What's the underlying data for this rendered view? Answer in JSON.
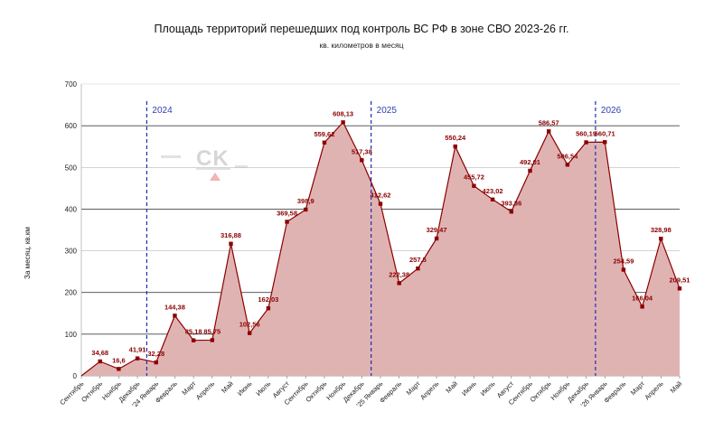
{
  "chart_data": {
    "type": "area",
    "title": "Площадь территорий перешедших под контроль ВС РФ в зоне СВО 2023-26 гг.",
    "subtitle": "кв. километров в месяц",
    "ylabel": "За месяц, кв.км",
    "xlabel": "",
    "ylim": [
      0,
      700
    ],
    "yticks": [
      0,
      100,
      200,
      300,
      400,
      500,
      600,
      700
    ],
    "grid": "horizontal",
    "colors": {
      "fill": "#e0b3b3",
      "line": "#8b0000",
      "marker": "#8b0000",
      "divider": "#1a2fb0"
    },
    "categories": [
      "Сентябрь",
      "Октябрь",
      "Ноябрь",
      "Декабрь",
      "'24 Январь",
      "Февраль",
      "Март",
      "Апрель",
      "Май",
      "Июнь",
      "Июль",
      "Август",
      "Сентябрь",
      "Октябрь",
      "Ноябрь",
      "Декабрь",
      "'25 Январь",
      "Февраль",
      "Март",
      "Апрель",
      "Май",
      "Июнь",
      "Июль",
      "Август",
      "Сентябрь",
      "Октябрь",
      "Ноябрь",
      "Декабрь",
      "'26 Январь",
      "Февраль",
      "Март",
      "Апрель",
      "Май"
    ],
    "values": [
      0,
      34.68,
      16.6,
      41.91,
      32.28,
      144.38,
      85.18,
      85.75,
      316.88,
      102.56,
      162.03,
      369.58,
      398.9,
      559.62,
      608.13,
      517.38,
      412.62,
      222.38,
      257.5,
      329.47,
      550.24,
      455.72,
      423.02,
      393.86,
      492.01,
      586.57,
      506.54,
      560.19,
      560.71,
      254.59,
      166.04,
      328.98,
      209.51
    ],
    "data_labels": [
      "",
      "34,68",
      "16,6",
      "41,91",
      "32,28",
      "144,38",
      "85,18",
      "85,75",
      "316,88",
      "102,56",
      "162,03",
      "369,58",
      "398,9",
      "559,62",
      "608,13",
      "517,38",
      "412,62",
      "222,38",
      "257,5",
      "329,47",
      "550,24",
      "455,72",
      "423,02",
      "393,86",
      "492,01",
      "586,57",
      "506,54",
      "560,19",
      "560,71",
      "254,59",
      "166,04",
      "328,98",
      "209,51"
    ],
    "year_markers": [
      {
        "label": "2024",
        "between": [
          3,
          4
        ]
      },
      {
        "label": "2025",
        "between": [
          15,
          16
        ]
      },
      {
        "label": "2026",
        "between": [
          27,
          28
        ]
      }
    ]
  },
  "watermark": {
    "text": "CK"
  }
}
